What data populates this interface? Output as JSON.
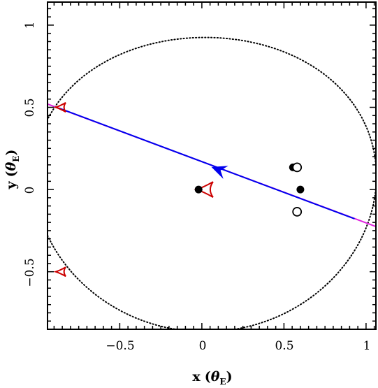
{
  "chart_data": {
    "type": "scatter",
    "xlim": [
      -0.94,
      1.06
    ],
    "ylim": [
      -0.85,
      1.14
    ],
    "xticks": [
      -0.5,
      0,
      0.5,
      1
    ],
    "yticks": [
      -0.5,
      0,
      0.5,
      1
    ],
    "xtick_labels": [
      "−0.5",
      "0",
      "0.5",
      "1"
    ],
    "ytick_labels": [
      "−0.5",
      "0",
      "0.5",
      "1"
    ],
    "xlabel": {
      "main": "x",
      "theta": "θ",
      "sub": "E",
      "left": "(",
      "right": ")"
    },
    "ylabel": {
      "main": "y",
      "theta": "θ",
      "sub": "E",
      "left": "(",
      "right": ")"
    },
    "grid": false,
    "colors": {
      "critical_curve": "#000000",
      "trajectory_magenta": "#dd22dd",
      "trajectory_blue": "#0000ee",
      "caustic": "#cc0000",
      "points": "#000000"
    },
    "filled_points": [
      {
        "x": -0.02,
        "y": 0.0
      },
      {
        "x": 0.555,
        "y": 0.135
      },
      {
        "x": 0.6,
        "y": 0.0
      }
    ],
    "open_points": [
      {
        "x": 0.58,
        "y": 0.135
      },
      {
        "x": 0.58,
        "y": -0.135
      }
    ],
    "trajectory_magenta": {
      "x": [
        -0.94,
        1.06
      ],
      "y": [
        0.52,
        -0.225
      ]
    },
    "trajectory_blue": {
      "x": [
        -0.87,
        0.93
      ],
      "y": [
        0.495,
        -0.178
      ]
    },
    "arrow": {
      "x": 0.09,
      "y": 0.125,
      "direction": "left"
    },
    "caustics": [
      {
        "x": 0.0,
        "y": 0.0,
        "size": "large"
      },
      {
        "x": -0.87,
        "y": 0.5,
        "size": "small"
      },
      {
        "x": -0.87,
        "y": -0.5,
        "size": "small"
      }
    ],
    "critical_curve_shape": "closed dotted loop around origin, extends beyond plot window"
  }
}
